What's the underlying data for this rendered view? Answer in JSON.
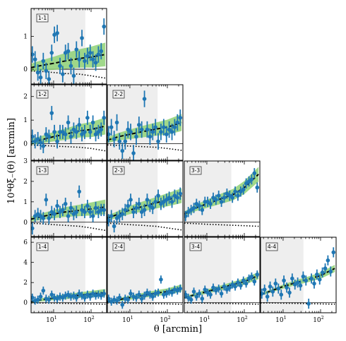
{
  "figure": {
    "xlabel": "θ [arcmin]",
    "ylabel": "10⁴θξ₋(θ) [arcmin]"
  },
  "colors": {
    "data": "#1f77b4",
    "band": "#8fd175",
    "model": "#000000",
    "shade": "#eeeeee"
  },
  "chart_data": [
    {
      "type": "scatter",
      "panel": "1-1",
      "row": 0,
      "col": 0,
      "ylim": [
        -0.45,
        1.85
      ],
      "yticks": [
        0,
        1
      ],
      "shade_xmax": 70,
      "show_xticklabels": false,
      "x": [
        2.7,
        3.2,
        3.8,
        4.5,
        5.3,
        6.3,
        7.5,
        8.9,
        10.5,
        12.5,
        14.8,
        17.5,
        20.7,
        24.5,
        29,
        34.4,
        40.7,
        48.2,
        57,
        67.5,
        80,
        94.7,
        112,
        133,
        157,
        186,
        221
      ],
      "y": [
        0.45,
        0.3,
        -0.1,
        -0.25,
        0.25,
        -0.05,
        -0.3,
        0.5,
        1.05,
        1.1,
        0.1,
        -0.15,
        0.5,
        0.55,
        0.1,
        -0.2,
        0.6,
        0.3,
        0.95,
        0.25,
        0.4,
        0.5,
        0.3,
        0.2,
        0.45,
        0.55,
        1.3
      ],
      "err": [
        0.25,
        0.25,
        0.25,
        0.25,
        0.25,
        0.25,
        0.25,
        0.25,
        0.25,
        0.25,
        0.25,
        0.25,
        0.25,
        0.25,
        0.25,
        0.25,
        0.25,
        0.25,
        0.25,
        0.25,
        0.25,
        0.25,
        0.25,
        0.25,
        0.25,
        0.25,
        0.25
      ],
      "model_x": [
        2.5,
        5,
        10,
        20,
        50,
        100,
        240
      ],
      "model_y": [
        0.05,
        0.12,
        0.18,
        0.25,
        0.33,
        0.37,
        0.45
      ],
      "minus_y": [
        -0.05,
        -0.07,
        -0.1,
        -0.13,
        -0.15,
        -0.2,
        -0.27
      ]
    },
    {
      "type": "scatter",
      "panel": "1-2",
      "row": 1,
      "col": 0,
      "ylim": [
        -0.7,
        2.5
      ],
      "yticks": [
        0,
        1,
        2
      ],
      "shade_xmax": 70,
      "show_xticklabels": false,
      "x": [
        2.7,
        3.2,
        3.8,
        4.5,
        5.3,
        6.3,
        7.5,
        8.9,
        10.5,
        12.5,
        14.8,
        17.5,
        20.7,
        24.5,
        29,
        34.4,
        40.7,
        48.2,
        57,
        67.5,
        80,
        94.7,
        112,
        133,
        157,
        186,
        221
      ],
      "y": [
        0.3,
        0.1,
        0.2,
        0.05,
        -0.1,
        0.4,
        0.3,
        1.3,
        0.5,
        0.1,
        0.5,
        0.5,
        0.4,
        0.9,
        0.3,
        0.6,
        0.5,
        0.8,
        0.4,
        0.5,
        1.1,
        0.5,
        0.9,
        0.4,
        0.5,
        0.6,
        1.1
      ],
      "err": [
        0.3,
        0.3,
        0.3,
        0.3,
        0.3,
        0.3,
        0.3,
        0.3,
        0.3,
        0.3,
        0.3,
        0.3,
        0.3,
        0.3,
        0.3,
        0.3,
        0.3,
        0.3,
        0.3,
        0.3,
        0.3,
        0.3,
        0.3,
        0.3,
        0.3,
        0.3,
        0.3
      ],
      "model_x": [
        2.5,
        5,
        10,
        20,
        50,
        100,
        240
      ],
      "model_y": [
        0.08,
        0.18,
        0.3,
        0.4,
        0.55,
        0.6,
        0.75
      ],
      "minus_y": [
        -0.05,
        -0.07,
        -0.1,
        -0.12,
        -0.15,
        -0.2,
        -0.3
      ]
    },
    {
      "type": "scatter",
      "panel": "2-2",
      "row": 1,
      "col": 1,
      "ylim": [
        -0.7,
        2.5
      ],
      "yticks": [],
      "shade_xmax": 55,
      "show_xticklabels": false,
      "x": [
        2.7,
        3.2,
        3.8,
        4.5,
        5.3,
        6.3,
        7.5,
        8.9,
        10.5,
        12.5,
        14.8,
        17.5,
        20.7,
        24.5,
        29,
        34.4,
        40.7,
        48.2,
        57,
        67.5,
        80,
        94.7,
        112,
        133,
        157,
        186,
        221
      ],
      "y": [
        0.4,
        0.7,
        0.2,
        0.9,
        0.1,
        -0.3,
        0.1,
        0.6,
        0.5,
        -0.4,
        0.3,
        0.8,
        0.6,
        1.9,
        0.6,
        0.3,
        0.5,
        0.7,
        0.1,
        0.5,
        0.7,
        0.4,
        0.6,
        0.5,
        0.7,
        0.9,
        1.1
      ],
      "err": [
        0.35,
        0.35,
        0.35,
        0.35,
        0.35,
        0.35,
        0.35,
        0.35,
        0.35,
        0.35,
        0.35,
        0.35,
        0.35,
        0.35,
        0.35,
        0.35,
        0.35,
        0.35,
        0.35,
        0.35,
        0.35,
        0.35,
        0.35,
        0.35,
        0.35,
        0.35,
        0.35
      ],
      "model_x": [
        2.5,
        5,
        10,
        20,
        50,
        100,
        240
      ],
      "model_y": [
        0.15,
        0.3,
        0.4,
        0.5,
        0.62,
        0.7,
        0.9
      ],
      "minus_y": [
        -0.05,
        -0.07,
        -0.1,
        -0.12,
        -0.15,
        -0.2,
        -0.28
      ]
    },
    {
      "type": "scatter",
      "panel": "1-3",
      "row": 2,
      "col": 0,
      "ylim": [
        -0.7,
        3.0
      ],
      "yticks": [
        0,
        1,
        2,
        3
      ],
      "shade_xmax": 70,
      "show_xticklabels": false,
      "x": [
        2.7,
        3.2,
        3.8,
        4.5,
        5.3,
        6.3,
        7.5,
        8.9,
        10.5,
        12.5,
        14.8,
        17.5,
        20.7,
        24.5,
        29,
        34.4,
        40.7,
        48.2,
        57,
        67.5,
        80,
        94.7,
        112,
        133,
        157,
        186,
        221
      ],
      "y": [
        -0.3,
        0.3,
        0.4,
        0.3,
        0.2,
        1.1,
        0.2,
        0.5,
        0.4,
        0.8,
        0.5,
        0.6,
        0.9,
        0.3,
        0.7,
        0.4,
        0.5,
        1.5,
        0.6,
        0.5,
        0.8,
        0.5,
        0.3,
        0.7,
        0.5,
        0.6,
        0.6
      ],
      "err": [
        0.3,
        0.3,
        0.3,
        0.3,
        0.3,
        0.3,
        0.3,
        0.3,
        0.3,
        0.3,
        0.3,
        0.3,
        0.3,
        0.3,
        0.3,
        0.3,
        0.3,
        0.3,
        0.3,
        0.3,
        0.3,
        0.3,
        0.3,
        0.3,
        0.3,
        0.3,
        0.3
      ],
      "model_x": [
        2.5,
        5,
        10,
        20,
        50,
        100,
        240
      ],
      "model_y": [
        0.15,
        0.28,
        0.4,
        0.5,
        0.58,
        0.65,
        0.75
      ],
      "minus_y": [
        -0.05,
        -0.08,
        -0.12,
        -0.15,
        -0.2,
        -0.28,
        -0.4
      ]
    },
    {
      "type": "scatter",
      "panel": "2-3",
      "row": 2,
      "col": 1,
      "ylim": [
        -0.7,
        3.0
      ],
      "yticks": [],
      "shade_xmax": 55,
      "show_xticklabels": false,
      "x": [
        2.7,
        3.2,
        3.8,
        4.5,
        5.3,
        6.3,
        7.5,
        8.9,
        10.5,
        12.5,
        14.8,
        17.5,
        20.7,
        24.5,
        29,
        34.4,
        40.7,
        48.2,
        57,
        67.5,
        80,
        94.7,
        112,
        133,
        157,
        186,
        221
      ],
      "y": [
        0.1,
        0.3,
        -0.2,
        0.2,
        0.3,
        0.4,
        0.6,
        0.8,
        1.1,
        0.5,
        0.7,
        0.9,
        0.5,
        0.6,
        1.1,
        0.8,
        0.7,
        1.0,
        1.3,
        0.9,
        1.0,
        1.1,
        1.2,
        1.0,
        1.3,
        1.2,
        1.4
      ],
      "err": [
        0.3,
        0.3,
        0.3,
        0.3,
        0.3,
        0.3,
        0.3,
        0.3,
        0.3,
        0.3,
        0.3,
        0.3,
        0.3,
        0.3,
        0.3,
        0.3,
        0.3,
        0.3,
        0.3,
        0.3,
        0.3,
        0.3,
        0.3,
        0.3,
        0.3,
        0.3,
        0.3
      ],
      "model_x": [
        2.5,
        5,
        10,
        20,
        50,
        100,
        240
      ],
      "model_y": [
        0.2,
        0.4,
        0.6,
        0.75,
        0.95,
        1.1,
        1.3
      ],
      "minus_y": [
        -0.05,
        -0.08,
        -0.12,
        -0.15,
        -0.2,
        -0.28,
        -0.38
      ]
    },
    {
      "type": "scatter",
      "panel": "3-3",
      "row": 2,
      "col": 2,
      "ylim": [
        -0.7,
        3.0
      ],
      "yticks": [],
      "shade_xmax": 45,
      "show_xticklabels": false,
      "x": [
        2.7,
        3.2,
        3.8,
        4.5,
        5.3,
        6.3,
        7.5,
        8.9,
        10.5,
        12.5,
        14.8,
        17.5,
        20.7,
        24.5,
        29,
        34.4,
        40.7,
        48.2,
        57,
        67.5,
        80,
        94.7,
        112,
        133,
        157,
        186,
        221
      ],
      "y": [
        0.3,
        0.5,
        0.6,
        0.7,
        0.9,
        0.8,
        0.6,
        1.0,
        1.0,
        0.9,
        1.2,
        1.1,
        1.3,
        1.0,
        1.2,
        1.4,
        1.3,
        1.2,
        1.5,
        1.3,
        1.5,
        1.6,
        1.9,
        2.0,
        2.1,
        2.4,
        1.7
      ],
      "err": [
        0.25,
        0.25,
        0.25,
        0.25,
        0.25,
        0.25,
        0.25,
        0.25,
        0.25,
        0.25,
        0.25,
        0.25,
        0.25,
        0.25,
        0.25,
        0.25,
        0.25,
        0.25,
        0.25,
        0.25,
        0.25,
        0.25,
        0.25,
        0.25,
        0.25,
        0.25,
        0.25
      ],
      "model_x": [
        2.5,
        5,
        10,
        20,
        50,
        100,
        240
      ],
      "model_y": [
        0.4,
        0.7,
        0.9,
        1.1,
        1.35,
        1.7,
        2.35
      ],
      "minus_y": [
        -0.05,
        -0.07,
        -0.1,
        -0.12,
        -0.15,
        -0.17,
        -0.2
      ]
    },
    {
      "type": "scatter",
      "panel": "1-4",
      "row": 3,
      "col": 0,
      "ylim": [
        -1.0,
        6.5
      ],
      "yticks": [
        0,
        2,
        4,
        6
      ],
      "shade_xmax": 70,
      "show_xticklabels": true,
      "x": [
        2.7,
        3.2,
        3.8,
        4.5,
        5.3,
        6.3,
        7.5,
        8.9,
        10.5,
        12.5,
        14.8,
        17.5,
        20.7,
        24.5,
        29,
        34.4,
        40.7,
        48.2,
        57,
        67.5,
        80,
        94.7,
        112,
        133,
        157,
        186,
        221
      ],
      "y": [
        0.5,
        0.2,
        0.3,
        0.6,
        1.2,
        0.4,
        0.3,
        0.8,
        0.5,
        0.4,
        0.6,
        0.5,
        0.7,
        0.8,
        0.6,
        0.7,
        0.5,
        0.9,
        0.7,
        0.5,
        0.8,
        0.6,
        0.9,
        0.7,
        0.8,
        0.7,
        0.9
      ],
      "err": [
        0.4,
        0.4,
        0.4,
        0.4,
        0.4,
        0.4,
        0.4,
        0.4,
        0.4,
        0.4,
        0.4,
        0.4,
        0.4,
        0.4,
        0.4,
        0.4,
        0.4,
        0.4,
        0.4,
        0.4,
        0.4,
        0.4,
        0.4,
        0.4,
        0.4,
        0.4,
        0.4
      ],
      "model_x": [
        2.5,
        5,
        10,
        20,
        50,
        100,
        240
      ],
      "model_y": [
        0.1,
        0.3,
        0.45,
        0.6,
        0.75,
        0.85,
        1.0
      ],
      "minus_y": [
        -0.02,
        -0.03,
        -0.05,
        -0.07,
        -0.1,
        -0.12,
        -0.15
      ]
    },
    {
      "type": "scatter",
      "panel": "2-4",
      "row": 3,
      "col": 1,
      "ylim": [
        -1.0,
        6.5
      ],
      "yticks": [],
      "shade_xmax": 45,
      "show_xticklabels": true,
      "x": [
        2.7,
        3.2,
        3.8,
        4.5,
        5.3,
        6.3,
        7.5,
        8.9,
        10.5,
        12.5,
        14.8,
        17.5,
        20.7,
        24.5,
        29,
        34.4,
        40.7,
        48.2,
        57,
        67.5,
        80,
        94.7,
        112,
        133,
        157,
        186,
        221
      ],
      "y": [
        0.4,
        0.1,
        0.3,
        0.2,
        0.5,
        -0.2,
        0.4,
        0.3,
        0.9,
        0.6,
        0.5,
        0.8,
        0.4,
        0.7,
        1.0,
        0.8,
        0.6,
        0.9,
        1.0,
        2.3,
        0.8,
        0.9,
        1.1,
        1.0,
        1.3,
        1.2,
        1.4
      ],
      "err": [
        0.4,
        0.4,
        0.4,
        0.4,
        0.4,
        0.4,
        0.4,
        0.4,
        0.4,
        0.4,
        0.4,
        0.4,
        0.4,
        0.4,
        0.4,
        0.4,
        0.4,
        0.4,
        0.4,
        0.4,
        0.4,
        0.4,
        0.4,
        0.4,
        0.4,
        0.4,
        0.4
      ],
      "model_x": [
        2.5,
        5,
        10,
        20,
        50,
        100,
        240
      ],
      "model_y": [
        0.1,
        0.3,
        0.5,
        0.7,
        0.95,
        1.1,
        1.45
      ],
      "minus_y": [
        -0.02,
        -0.03,
        -0.05,
        -0.07,
        -0.1,
        -0.12,
        -0.15
      ]
    },
    {
      "type": "scatter",
      "panel": "3-4",
      "row": 3,
      "col": 2,
      "ylim": [
        -1.0,
        6.5
      ],
      "yticks": [],
      "shade_xmax": 45,
      "show_xticklabels": true,
      "x": [
        2.7,
        3.2,
        3.8,
        4.5,
        5.3,
        6.3,
        7.5,
        8.9,
        10.5,
        12.5,
        14.8,
        17.5,
        20.7,
        24.5,
        29,
        34.4,
        40.7,
        48.2,
        57,
        67.5,
        80,
        94.7,
        112,
        133,
        157,
        186,
        221
      ],
      "y": [
        0.8,
        0.5,
        0.3,
        1.1,
        0.6,
        0.9,
        0.4,
        1.3,
        1.0,
        0.8,
        1.5,
        1.2,
        1.4,
        0.9,
        1.6,
        1.3,
        1.5,
        1.8,
        1.6,
        2.0,
        1.7,
        2.2,
        1.9,
        2.4,
        2.6,
        2.1,
        2.8
      ],
      "err": [
        0.4,
        0.4,
        0.4,
        0.4,
        0.4,
        0.4,
        0.4,
        0.4,
        0.4,
        0.4,
        0.4,
        0.4,
        0.4,
        0.4,
        0.4,
        0.4,
        0.4,
        0.4,
        0.4,
        0.4,
        0.4,
        0.4,
        0.4,
        0.4,
        0.4,
        0.4,
        0.4
      ],
      "model_x": [
        2.5,
        5,
        10,
        20,
        50,
        100,
        240
      ],
      "model_y": [
        0.5,
        0.8,
        1.1,
        1.4,
        1.8,
        2.1,
        2.7
      ],
      "minus_y": [
        -0.02,
        -0.03,
        -0.05,
        -0.07,
        -0.1,
        -0.12,
        -0.15
      ]
    },
    {
      "type": "scatter",
      "panel": "4-4",
      "row": 3,
      "col": 3,
      "ylim": [
        -1.0,
        6.5
      ],
      "yticks": [],
      "shade_xmax": 35,
      "show_xticklabels": true,
      "x": [
        2.7,
        3.2,
        3.8,
        4.5,
        5.3,
        6.3,
        7.5,
        8.9,
        10.5,
        12.5,
        14.8,
        17.5,
        20.7,
        24.5,
        29,
        34.4,
        40.7,
        48.2,
        57,
        67.5,
        80,
        94.7,
        112,
        133,
        157,
        186,
        221
      ],
      "y": [
        0.9,
        1.3,
        0.6,
        1.6,
        1.1,
        1.9,
        1.4,
        0.8,
        2.2,
        1.5,
        1.0,
        2.4,
        1.8,
        2.0,
        1.7,
        2.6,
        2.2,
        -0.1,
        2.4,
        1.9,
        2.8,
        2.3,
        3.0,
        3.4,
        4.2,
        3.1,
        5.0
      ],
      "err": [
        0.5,
        0.5,
        0.5,
        0.5,
        0.5,
        0.5,
        0.5,
        0.5,
        0.5,
        0.5,
        0.5,
        0.5,
        0.5,
        0.5,
        0.5,
        0.5,
        0.5,
        0.5,
        0.5,
        0.5,
        0.5,
        0.5,
        0.5,
        0.5,
        0.5,
        0.5,
        0.5
      ],
      "model_x": [
        2.5,
        5,
        10,
        20,
        50,
        100,
        240
      ],
      "model_y": [
        0.8,
        1.2,
        1.6,
        1.95,
        2.35,
        2.7,
        3.4
      ],
      "minus_y": [
        -0.02,
        -0.03,
        -0.05,
        -0.07,
        -0.1,
        -0.12,
        -0.15
      ]
    }
  ]
}
